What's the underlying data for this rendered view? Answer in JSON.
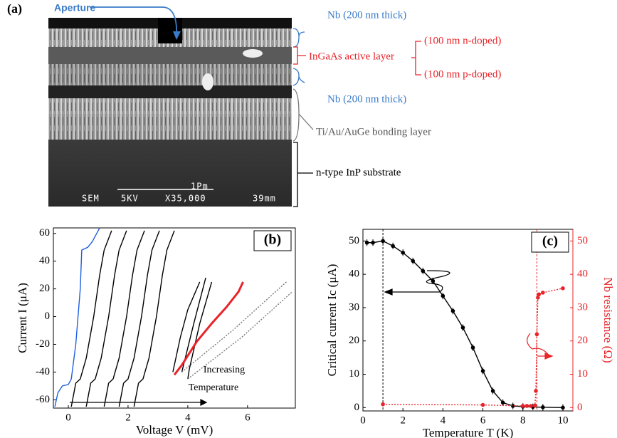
{
  "panel_a": {
    "label": "(a)",
    "aperture": "Aperture",
    "nb_top": "Nb (200 nm thick)",
    "active": "InGaAs active layer",
    "n_doped": "(100 nm n-doped)",
    "p_doped": "(100 nm p-doped)",
    "nb_bottom": "Nb (200 nm thick)",
    "bonding": "Ti/Au/AuGe bonding layer",
    "substrate": "n-type  InP substrate",
    "sem_scale": "1Pm",
    "sem_mode": "SEM",
    "sem_kv": "5KV",
    "sem_mag": "X35,000",
    "sem_wd": "39mm"
  },
  "chart_data": [
    {
      "type": "line",
      "panel_label": "(b)",
      "xlabel": "Voltage V (mV)",
      "ylabel": "Current I (μA)",
      "annotations": [
        "Increasing",
        "Temperature"
      ],
      "xlim": [
        -0.5,
        7.6
      ],
      "xticks": [
        0,
        2,
        4,
        6
      ],
      "ylim": [
        -66,
        64
      ],
      "yticks": [
        -60,
        -40,
        -20,
        0,
        20,
        40,
        60
      ],
      "series": [
        {
          "color": "#1f5fe0",
          "x": [
            -0.45,
            -0.35,
            -0.2,
            0.0,
            0.1,
            0.25,
            0.4,
            0.45,
            0.65,
            0.8,
            0.95,
            1.05
          ],
          "values": [
            -65,
            -55,
            -50,
            -49,
            -45,
            -20,
            20,
            48,
            50,
            54,
            60,
            64
          ]
        },
        {
          "color": "#000000",
          "x": [
            0.1,
            0.25,
            0.4,
            0.6,
            0.85,
            1.05,
            1.2,
            1.45
          ],
          "values": [
            -65,
            -48,
            -45,
            -30,
            0,
            30,
            48,
            62
          ]
        },
        {
          "color": "#000000",
          "x": [
            0.6,
            0.75,
            0.9,
            1.1,
            1.35,
            1.55,
            1.7,
            1.95
          ],
          "values": [
            -65,
            -48,
            -45,
            -30,
            0,
            30,
            48,
            62
          ]
        },
        {
          "color": "#000000",
          "x": [
            1.2,
            1.35,
            1.5,
            1.7,
            1.95,
            2.15,
            2.3,
            2.55
          ],
          "values": [
            -65,
            -48,
            -45,
            -30,
            0,
            30,
            48,
            62
          ]
        },
        {
          "color": "#000000",
          "x": [
            1.7,
            1.85,
            2.0,
            2.2,
            2.45,
            2.65,
            2.8,
            3.05
          ],
          "values": [
            -65,
            -48,
            -45,
            -30,
            0,
            30,
            48,
            62
          ]
        },
        {
          "color": "#000000",
          "x": [
            2.2,
            2.35,
            2.5,
            2.7,
            2.95,
            3.15,
            3.3,
            3.55
          ],
          "values": [
            -65,
            -48,
            -45,
            -30,
            0,
            30,
            48,
            62
          ]
        },
        {
          "color": "#000000",
          "x": [
            3.5,
            3.75,
            4.0,
            4.4
          ],
          "values": [
            -40,
            -15,
            5,
            25
          ]
        },
        {
          "color": "#000000",
          "x": [
            3.8,
            4.2,
            4.6
          ],
          "values": [
            -40,
            -5,
            28
          ]
        },
        {
          "color": "#000000",
          "x": [
            4.0,
            4.05,
            4.4,
            4.8
          ],
          "values": [
            -45,
            -38,
            -5,
            25
          ]
        },
        {
          "color": "#e8242a",
          "width": 3,
          "x": [
            3.55,
            3.8,
            4.3,
            4.8,
            5.3,
            5.7,
            5.85
          ],
          "values": [
            -42,
            -35,
            -18,
            -5,
            7,
            18,
            25
          ]
        },
        {
          "color": "#777777",
          "line_style": "dotted",
          "x": [
            3.8,
            5.5,
            7.3
          ],
          "values": [
            -40,
            -10,
            25
          ]
        },
        {
          "color": "#777777",
          "line_style": "dotted",
          "x": [
            4.0,
            5.8,
            7.5
          ],
          "values": [
            -45,
            -15,
            18
          ]
        }
      ]
    },
    {
      "type": "line",
      "panel_label": "(c)",
      "xlabel": "Temperature T (K)",
      "ylabel": "Critical current Ic (μA)",
      "y2label": "Nb resistance (Ω)",
      "xlim": [
        0,
        10.5
      ],
      "xticks": [
        0,
        2,
        4,
        6,
        8,
        10
      ],
      "ylim": [
        -1,
        53.5
      ],
      "yticks": [
        0,
        10,
        20,
        30,
        40,
        50
      ],
      "y2lim": [
        -1,
        53.5
      ],
      "y2ticks": [
        0,
        10,
        20,
        30,
        40,
        50
      ],
      "y2color": "#e8242a",
      "vlines": [
        {
          "x": 1,
          "color": "#000000"
        },
        {
          "x": 8.7,
          "color": "#e8242a"
        }
      ],
      "series": [
        {
          "color": "#000000",
          "markers": true,
          "x": [
            0.2,
            0.5,
            1.0,
            1.5,
            2.0,
            2.5,
            3.0,
            3.5,
            4.0,
            4.5,
            5.0,
            5.5,
            6.0,
            6.5,
            7.0,
            7.5,
            8.0,
            8.5,
            9.0,
            10.0
          ],
          "values": [
            49.5,
            49.5,
            50,
            48.5,
            46.5,
            44,
            41,
            38,
            33.5,
            29,
            24,
            18,
            11,
            5,
            1.5,
            0.5,
            0.3,
            0.2,
            0.1,
            0
          ],
          "errors": [
            1,
            1,
            1,
            1,
            1,
            1,
            1,
            1,
            1,
            1,
            1,
            1,
            1,
            1,
            1,
            1,
            1,
            1,
            1,
            1
          ]
        },
        {
          "color": "#e8242a",
          "markers": true,
          "line_style": "dotted",
          "axis": "y2",
          "x": [
            1,
            6,
            8.0,
            8.2,
            8.4,
            8.6,
            8.65,
            8.7,
            8.75,
            8.8,
            9.0,
            10.0
          ],
          "values": [
            1,
            0.8,
            0.5,
            0.5,
            0.5,
            0.6,
            5,
            22,
            33,
            34,
            34.5,
            35.8
          ]
        }
      ]
    }
  ]
}
